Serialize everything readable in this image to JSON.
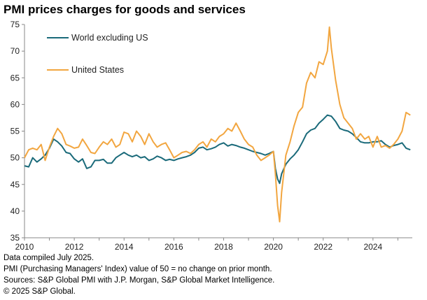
{
  "title": "PMI prices charges for goods and services",
  "footnotes": [
    "Data compiled July 2025.",
    "PMI (Purchasing Managers' Index) value of 50 = no change on prior month.",
    "Sources: S&P Global PMI with J.P. Morgan, S&P Global Market Intelligence.",
    "© 2025 S&P Global."
  ],
  "chart_data": {
    "type": "line",
    "title": "PMI prices charges for goods and services",
    "xlabel": "",
    "ylabel": "",
    "xlim": [
      2010.0,
      2025.58
    ],
    "ylim": [
      35,
      75
    ],
    "yticks": [
      35,
      40,
      45,
      50,
      55,
      60,
      65,
      70,
      75
    ],
    "xticks": [
      2010,
      2012,
      2014,
      2016,
      2018,
      2020,
      2022,
      2024
    ],
    "xtick_labels": [
      "2010",
      "2012",
      "2014",
      "2016",
      "2018",
      "2020",
      "2022",
      "2024"
    ],
    "grid": false,
    "legend": "top-left",
    "series": [
      {
        "name": "World excluding US",
        "color": "#1a6a7a",
        "points": [
          [
            2010.0,
            48.5
          ],
          [
            2010.17,
            48.3
          ],
          [
            2010.33,
            50.0
          ],
          [
            2010.5,
            49.2
          ],
          [
            2010.67,
            49.8
          ],
          [
            2010.83,
            50.5
          ],
          [
            2011.0,
            51.8
          ],
          [
            2011.17,
            53.5
          ],
          [
            2011.33,
            53.0
          ],
          [
            2011.5,
            52.2
          ],
          [
            2011.67,
            51.0
          ],
          [
            2011.83,
            50.8
          ],
          [
            2012.0,
            49.8
          ],
          [
            2012.17,
            49.2
          ],
          [
            2012.33,
            49.8
          ],
          [
            2012.5,
            48.0
          ],
          [
            2012.67,
            48.3
          ],
          [
            2012.83,
            49.5
          ],
          [
            2013.0,
            49.5
          ],
          [
            2013.17,
            49.7
          ],
          [
            2013.33,
            49.0
          ],
          [
            2013.5,
            49.0
          ],
          [
            2013.67,
            50.0
          ],
          [
            2013.83,
            50.5
          ],
          [
            2014.0,
            51.0
          ],
          [
            2014.17,
            50.5
          ],
          [
            2014.33,
            50.2
          ],
          [
            2014.5,
            50.5
          ],
          [
            2014.67,
            50.0
          ],
          [
            2014.83,
            50.2
          ],
          [
            2015.0,
            49.5
          ],
          [
            2015.17,
            49.8
          ],
          [
            2015.33,
            50.3
          ],
          [
            2015.5,
            50.0
          ],
          [
            2015.67,
            49.5
          ],
          [
            2015.83,
            49.7
          ],
          [
            2016.0,
            49.5
          ],
          [
            2016.17,
            49.8
          ],
          [
            2016.33,
            50.0
          ],
          [
            2016.5,
            50.2
          ],
          [
            2016.67,
            50.5
          ],
          [
            2016.83,
            51.0
          ],
          [
            2017.0,
            51.8
          ],
          [
            2017.17,
            52.0
          ],
          [
            2017.33,
            51.5
          ],
          [
            2017.5,
            51.7
          ],
          [
            2017.67,
            52.0
          ],
          [
            2017.83,
            52.5
          ],
          [
            2018.0,
            52.8
          ],
          [
            2018.17,
            52.2
          ],
          [
            2018.33,
            52.5
          ],
          [
            2018.5,
            52.3
          ],
          [
            2018.67,
            52.0
          ],
          [
            2018.83,
            51.8
          ],
          [
            2019.0,
            51.5
          ],
          [
            2019.17,
            51.2
          ],
          [
            2019.33,
            51.0
          ],
          [
            2019.5,
            50.8
          ],
          [
            2019.67,
            50.5
          ],
          [
            2019.83,
            50.8
          ],
          [
            2020.0,
            51.2
          ],
          [
            2020.08,
            48.0
          ],
          [
            2020.17,
            46.0
          ],
          [
            2020.25,
            45.2
          ],
          [
            2020.33,
            47.0
          ],
          [
            2020.5,
            48.8
          ],
          [
            2020.67,
            49.8
          ],
          [
            2020.83,
            50.5
          ],
          [
            2021.0,
            51.5
          ],
          [
            2021.17,
            53.0
          ],
          [
            2021.33,
            54.5
          ],
          [
            2021.5,
            55.2
          ],
          [
            2021.67,
            55.5
          ],
          [
            2021.83,
            56.5
          ],
          [
            2022.0,
            57.2
          ],
          [
            2022.17,
            58.0
          ],
          [
            2022.33,
            57.8
          ],
          [
            2022.5,
            56.8
          ],
          [
            2022.67,
            55.5
          ],
          [
            2022.83,
            55.2
          ],
          [
            2023.0,
            55.0
          ],
          [
            2023.17,
            54.5
          ],
          [
            2023.33,
            53.8
          ],
          [
            2023.5,
            53.0
          ],
          [
            2023.67,
            52.8
          ],
          [
            2023.83,
            52.8
          ],
          [
            2024.0,
            53.0
          ],
          [
            2024.17,
            53.0
          ],
          [
            2024.33,
            53.2
          ],
          [
            2024.5,
            52.5
          ],
          [
            2024.67,
            52.0
          ],
          [
            2024.83,
            52.3
          ],
          [
            2025.0,
            52.5
          ],
          [
            2025.17,
            52.8
          ],
          [
            2025.33,
            51.8
          ],
          [
            2025.5,
            51.5
          ]
        ]
      },
      {
        "name": "United States",
        "color": "#f2a640",
        "points": [
          [
            2010.0,
            50.0
          ],
          [
            2010.17,
            51.5
          ],
          [
            2010.33,
            51.8
          ],
          [
            2010.5,
            51.5
          ],
          [
            2010.67,
            52.5
          ],
          [
            2010.83,
            49.5
          ],
          [
            2011.0,
            52.0
          ],
          [
            2011.17,
            54.0
          ],
          [
            2011.33,
            55.5
          ],
          [
            2011.5,
            54.5
          ],
          [
            2011.67,
            52.5
          ],
          [
            2011.83,
            52.2
          ],
          [
            2012.0,
            51.8
          ],
          [
            2012.17,
            52.0
          ],
          [
            2012.33,
            53.5
          ],
          [
            2012.5,
            52.3
          ],
          [
            2012.67,
            51.0
          ],
          [
            2012.83,
            50.8
          ],
          [
            2013.0,
            52.0
          ],
          [
            2013.17,
            53.0
          ],
          [
            2013.33,
            52.5
          ],
          [
            2013.5,
            53.5
          ],
          [
            2013.67,
            52.0
          ],
          [
            2013.83,
            52.5
          ],
          [
            2014.0,
            54.8
          ],
          [
            2014.17,
            54.5
          ],
          [
            2014.33,
            53.0
          ],
          [
            2014.5,
            55.0
          ],
          [
            2014.67,
            54.0
          ],
          [
            2014.83,
            52.5
          ],
          [
            2015.0,
            54.5
          ],
          [
            2015.17,
            53.0
          ],
          [
            2015.33,
            52.0
          ],
          [
            2015.5,
            52.5
          ],
          [
            2015.67,
            52.8
          ],
          [
            2015.83,
            51.5
          ],
          [
            2016.0,
            50.0
          ],
          [
            2016.17,
            50.5
          ],
          [
            2016.33,
            51.0
          ],
          [
            2016.5,
            51.2
          ],
          [
            2016.67,
            50.8
          ],
          [
            2016.83,
            51.5
          ],
          [
            2017.0,
            52.5
          ],
          [
            2017.17,
            53.0
          ],
          [
            2017.33,
            52.0
          ],
          [
            2017.5,
            53.5
          ],
          [
            2017.67,
            53.0
          ],
          [
            2017.83,
            54.0
          ],
          [
            2018.0,
            54.5
          ],
          [
            2018.17,
            55.5
          ],
          [
            2018.33,
            55.0
          ],
          [
            2018.5,
            56.5
          ],
          [
            2018.67,
            55.0
          ],
          [
            2018.83,
            53.5
          ],
          [
            2019.0,
            52.5
          ],
          [
            2019.17,
            52.0
          ],
          [
            2019.33,
            50.5
          ],
          [
            2019.5,
            49.5
          ],
          [
            2019.67,
            50.0
          ],
          [
            2019.83,
            50.5
          ],
          [
            2020.0,
            51.2
          ],
          [
            2020.08,
            47.0
          ],
          [
            2020.17,
            41.0
          ],
          [
            2020.25,
            38.0
          ],
          [
            2020.33,
            43.5
          ],
          [
            2020.5,
            50.5
          ],
          [
            2020.67,
            53.0
          ],
          [
            2020.83,
            56.0
          ],
          [
            2021.0,
            58.5
          ],
          [
            2021.17,
            59.5
          ],
          [
            2021.33,
            64.0
          ],
          [
            2021.5,
            66.0
          ],
          [
            2021.67,
            65.0
          ],
          [
            2021.83,
            68.0
          ],
          [
            2022.0,
            67.5
          ],
          [
            2022.17,
            70.0
          ],
          [
            2022.25,
            74.5
          ],
          [
            2022.33,
            70.5
          ],
          [
            2022.5,
            64.5
          ],
          [
            2022.67,
            60.0
          ],
          [
            2022.83,
            57.5
          ],
          [
            2023.0,
            56.5
          ],
          [
            2023.17,
            55.5
          ],
          [
            2023.33,
            53.5
          ],
          [
            2023.5,
            54.5
          ],
          [
            2023.67,
            53.5
          ],
          [
            2023.83,
            54.0
          ],
          [
            2024.0,
            52.0
          ],
          [
            2024.17,
            54.0
          ],
          [
            2024.33,
            52.0
          ],
          [
            2024.5,
            52.3
          ],
          [
            2024.67,
            51.8
          ],
          [
            2024.83,
            52.5
          ],
          [
            2025.0,
            53.5
          ],
          [
            2025.17,
            55.0
          ],
          [
            2025.33,
            58.5
          ],
          [
            2025.5,
            58.0
          ]
        ]
      }
    ]
  }
}
